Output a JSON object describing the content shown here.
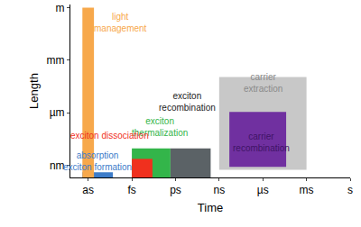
{
  "chart_data": {
    "type": "range",
    "x_label": "Time",
    "y_label": "Length",
    "log": true,
    "grid": false,
    "xlim": [
      6e-20,
      1
    ],
    "ylim": [
      2e-10,
      1.5
    ],
    "xticks": [
      {
        "value": 1e-18,
        "label": "as"
      },
      {
        "value": 1e-15,
        "label": "fs"
      },
      {
        "value": 1e-12,
        "label": "ps"
      },
      {
        "value": 1e-09,
        "label": "ns"
      },
      {
        "value": 1e-06,
        "label": "µs"
      },
      {
        "value": 0.001,
        "label": "ms"
      },
      {
        "value": 1,
        "label": "s"
      }
    ],
    "yticks": [
      {
        "value": 1e-09,
        "label": "nm"
      },
      {
        "value": 1e-06,
        "label": "µm"
      },
      {
        "value": 0.001,
        "label": "mm"
      },
      {
        "value": 1,
        "label": "m"
      }
    ],
    "series": [
      {
        "name": "carrier\nextraction",
        "color": "#c8c8c8",
        "x": [
          1e-09,
          0.001
        ],
        "y": [
          5.5e-10,
          0.00011
        ]
      },
      {
        "name": "carrier\nrecombination",
        "color": "#7030a0",
        "x": [
          5e-09,
          4e-05
        ],
        "y": [
          8e-10,
          1.1e-06
        ]
      },
      {
        "name": "absorption\nexciton formation",
        "color": "#3d7cc9",
        "x": [
          4e-19,
          5e-17
        ],
        "y": [
          2e-10,
          4e-10
        ]
      },
      {
        "name": "light\nmanagement",
        "color": "#f7a84b",
        "x": [
          4e-19,
          2.5e-18
        ],
        "y": [
          2e-10,
          1
        ]
      },
      {
        "name": "exciton\nthermalization",
        "color": "#33b54a",
        "x": [
          1e-15,
          4.5e-13
        ],
        "y": [
          2e-10,
          9e-09
        ]
      },
      {
        "name": "exciton dissociation",
        "color": "#f0301e",
        "x": [
          1e-15,
          2.6e-14
        ],
        "y": [
          2e-10,
          2.3e-09
        ]
      },
      {
        "name": "exciton\nrecombination",
        "color": "#5b6266",
        "x": [
          4.5e-13,
          2.6e-10
        ],
        "y": [
          2e-10,
          9e-09
        ]
      }
    ]
  }
}
